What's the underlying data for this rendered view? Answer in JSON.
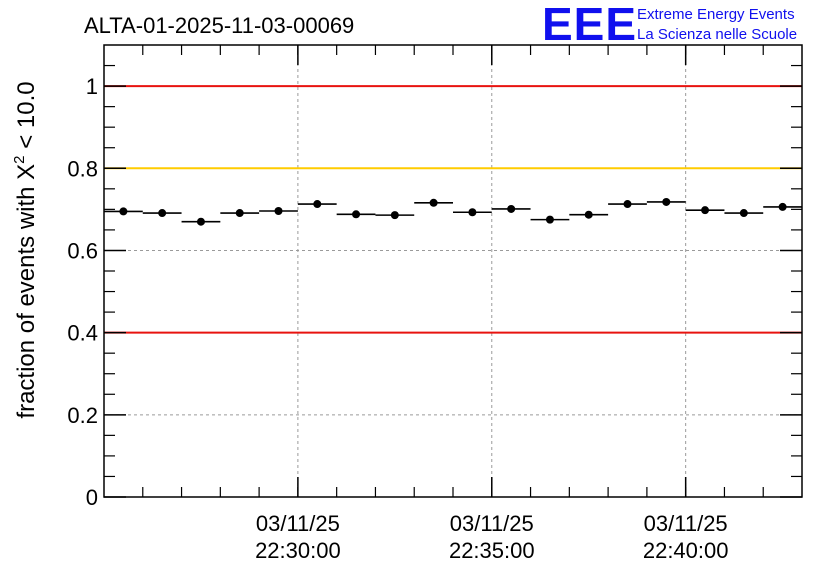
{
  "chart_data": {
    "type": "scatter",
    "title": "ALTA-01-2025-11-03-00069",
    "ylabel_prefix": "fraction of events with ",
    "ylabel_symbol": "X",
    "ylabel_sup": "2",
    "ylabel_suffix": " < 10.0",
    "xlabel": "",
    "ylim": [
      0,
      1.1
    ],
    "y_ticks": [
      0,
      0.2,
      0.4,
      0.6,
      0.8,
      1
    ],
    "y_tick_labels": [
      "0",
      "0.2",
      "0.4",
      "0.6",
      "0.8",
      "1"
    ],
    "x_range_minutes": [
      0,
      18
    ],
    "x_major_ticks": [
      {
        "minute": 5,
        "date": "03/11/25",
        "time": "22:30:00"
      },
      {
        "minute": 10,
        "date": "03/11/25",
        "time": "22:35:00"
      },
      {
        "minute": 15,
        "date": "03/11/25",
        "time": "22:40:00"
      }
    ],
    "x_minor_step": 1,
    "grid": true,
    "reference_lines": [
      {
        "y": 1.0,
        "color": "#e8130f"
      },
      {
        "y": 0.8,
        "color": "#ffcc00"
      },
      {
        "y": 0.4,
        "color": "#e8130f"
      }
    ],
    "series": [
      {
        "name": "fraction",
        "bin_width_minutes": 1,
        "x_centers": [
          0.5,
          1.5,
          2.5,
          3.5,
          4.5,
          5.5,
          6.5,
          7.5,
          8.5,
          9.5,
          10.5,
          11.5,
          12.5,
          13.5,
          14.5,
          15.5,
          16.5,
          17.5
        ],
        "values": [
          0.695,
          0.691,
          0.67,
          0.691,
          0.696,
          0.713,
          0.688,
          0.686,
          0.716,
          0.693,
          0.701,
          0.675,
          0.687,
          0.713,
          0.718,
          0.698,
          0.691,
          0.706
        ],
        "errors": [
          0.006,
          0.006,
          0.006,
          0.006,
          0.006,
          0.006,
          0.006,
          0.006,
          0.006,
          0.006,
          0.006,
          0.006,
          0.006,
          0.006,
          0.006,
          0.006,
          0.006,
          0.006
        ],
        "color": "#000000"
      }
    ]
  },
  "logo": {
    "letters": "EEE",
    "line1": "Extreme Energy Events",
    "line2": "La Scienza nelle Scuole",
    "color": "#1010ee"
  }
}
